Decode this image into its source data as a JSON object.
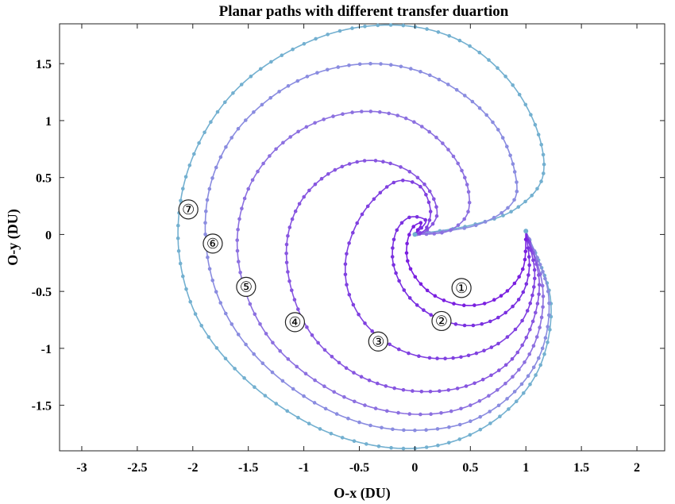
{
  "chart_data": {
    "type": "line",
    "title": "Planar paths with different transfer duartion",
    "xlabel": "O-x (DU)",
    "ylabel": "O-y (DU)",
    "xlim": [
      -3.2,
      2.25
    ],
    "ylim": [
      -1.9,
      1.85
    ],
    "xticks": [
      -3,
      -2.5,
      -2,
      -1.5,
      -1,
      -0.5,
      0,
      0.5,
      1,
      1.5,
      2
    ],
    "yticks": [
      -1.5,
      -1,
      -0.5,
      0,
      0.5,
      1,
      1.5
    ],
    "xtick_labels": [
      "-3",
      "-2.5",
      "-2",
      "-1.5",
      "-1",
      "-0.5",
      "0",
      "0.5",
      "1",
      "1.5",
      "2"
    ],
    "ytick_labels": [
      "-1.5",
      "-1",
      "-0.5",
      "0",
      "0.5",
      "1",
      "1.5"
    ],
    "grid": false,
    "start_point": [
      1.0,
      0.03
    ],
    "end_point": [
      0.0,
      0.0
    ],
    "series": [
      {
        "label": "①",
        "color": "#7a1fe0",
        "label_pos": [
          0.42,
          -0.47
        ],
        "points": [
          [
            1.0,
            0.03
          ],
          [
            0.98,
            -0.28
          ],
          [
            0.85,
            -0.48
          ],
          [
            0.65,
            -0.6
          ],
          [
            0.42,
            -0.62
          ],
          [
            0.2,
            -0.55
          ],
          [
            0.04,
            -0.42
          ],
          [
            -0.06,
            -0.25
          ],
          [
            -0.07,
            -0.08
          ],
          [
            -0.02,
            0.06
          ],
          [
            0.06,
            0.1
          ],
          [
            0.0,
            0.0
          ]
        ]
      },
      {
        "label": "②",
        "color": "#7a30e0",
        "label_pos": [
          0.24,
          -0.76
        ],
        "points": [
          [
            1.0,
            0.03
          ],
          [
            1.03,
            -0.3
          ],
          [
            0.95,
            -0.55
          ],
          [
            0.75,
            -0.73
          ],
          [
            0.5,
            -0.8
          ],
          [
            0.24,
            -0.75
          ],
          [
            0.02,
            -0.62
          ],
          [
            -0.12,
            -0.45
          ],
          [
            -0.2,
            -0.22
          ],
          [
            -0.17,
            0.02
          ],
          [
            -0.05,
            0.15
          ],
          [
            0.1,
            0.12
          ],
          [
            0.0,
            0.0
          ]
        ]
      },
      {
        "label": "③",
        "color": "#8040e0",
        "label_pos": [
          -0.33,
          -0.94
        ],
        "points": [
          [
            1.0,
            0.03
          ],
          [
            1.08,
            -0.35
          ],
          [
            1.0,
            -0.7
          ],
          [
            0.78,
            -0.94
          ],
          [
            0.45,
            -1.07
          ],
          [
            0.1,
            -1.08
          ],
          [
            -0.2,
            -0.98
          ],
          [
            -0.45,
            -0.78
          ],
          [
            -0.6,
            -0.5
          ],
          [
            -0.62,
            -0.2
          ],
          [
            -0.52,
            0.1
          ],
          [
            -0.35,
            0.33
          ],
          [
            -0.15,
            0.47
          ],
          [
            0.05,
            0.42
          ],
          [
            0.14,
            0.22
          ],
          [
            0.1,
            0.05
          ],
          [
            0.0,
            0.0
          ]
        ]
      },
      {
        "label": "④",
        "color": "#8755e0",
        "label_pos": [
          -1.08,
          -0.77
        ],
        "points": [
          [
            1.0,
            0.03
          ],
          [
            1.12,
            -0.4
          ],
          [
            1.05,
            -0.8
          ],
          [
            0.85,
            -1.12
          ],
          [
            0.5,
            -1.32
          ],
          [
            0.1,
            -1.38
          ],
          [
            -0.3,
            -1.32
          ],
          [
            -0.65,
            -1.15
          ],
          [
            -0.95,
            -0.85
          ],
          [
            -1.12,
            -0.45
          ],
          [
            -1.15,
            -0.05
          ],
          [
            -1.02,
            0.3
          ],
          [
            -0.75,
            0.55
          ],
          [
            -0.42,
            0.65
          ],
          [
            -0.1,
            0.58
          ],
          [
            0.12,
            0.4
          ],
          [
            0.2,
            0.18
          ],
          [
            0.1,
            0.03
          ],
          [
            0.0,
            0.0
          ]
        ]
      },
      {
        "label": "⑤",
        "color": "#8c70e0",
        "label_pos": [
          -1.52,
          -0.46
        ],
        "points": [
          [
            1.0,
            0.03
          ],
          [
            1.15,
            -0.45
          ],
          [
            1.1,
            -0.9
          ],
          [
            0.88,
            -1.25
          ],
          [
            0.5,
            -1.5
          ],
          [
            0.05,
            -1.58
          ],
          [
            -0.45,
            -1.5
          ],
          [
            -0.9,
            -1.28
          ],
          [
            -1.28,
            -0.95
          ],
          [
            -1.52,
            -0.52
          ],
          [
            -1.6,
            -0.05
          ],
          [
            -1.5,
            0.4
          ],
          [
            -1.25,
            0.75
          ],
          [
            -0.9,
            0.98
          ],
          [
            -0.48,
            1.08
          ],
          [
            -0.08,
            1.02
          ],
          [
            0.25,
            0.8
          ],
          [
            0.45,
            0.5
          ],
          [
            0.48,
            0.2
          ],
          [
            0.3,
            0.03
          ],
          [
            0.0,
            0.0
          ]
        ]
      },
      {
        "label": "⑥",
        "color": "#8a8ce0",
        "label_pos": [
          -1.82,
          -0.08
        ],
        "points": [
          [
            1.0,
            0.03
          ],
          [
            1.2,
            -0.5
          ],
          [
            1.15,
            -1.0
          ],
          [
            0.9,
            -1.38
          ],
          [
            0.5,
            -1.64
          ],
          [
            0.0,
            -1.72
          ],
          [
            -0.5,
            -1.65
          ],
          [
            -1.0,
            -1.42
          ],
          [
            -1.45,
            -1.05
          ],
          [
            -1.75,
            -0.6
          ],
          [
            -1.88,
            -0.1
          ],
          [
            -1.85,
            0.4
          ],
          [
            -1.65,
            0.85
          ],
          [
            -1.3,
            1.2
          ],
          [
            -0.88,
            1.42
          ],
          [
            -0.4,
            1.5
          ],
          [
            0.05,
            1.43
          ],
          [
            0.45,
            1.22
          ],
          [
            0.75,
            0.92
          ],
          [
            0.9,
            0.55
          ],
          [
            0.88,
            0.28
          ],
          [
            0.55,
            0.08
          ],
          [
            0.0,
            0.0
          ]
        ]
      },
      {
        "label": "⑦",
        "color": "#73b0d0",
        "label_pos": [
          -2.04,
          0.22
        ],
        "points": [
          [
            1.0,
            0.03
          ],
          [
            1.22,
            -0.55
          ],
          [
            1.15,
            -1.1
          ],
          [
            0.88,
            -1.5
          ],
          [
            0.45,
            -1.78
          ],
          [
            -0.05,
            -1.88
          ],
          [
            -0.6,
            -1.8
          ],
          [
            -1.1,
            -1.58
          ],
          [
            -1.58,
            -1.22
          ],
          [
            -1.95,
            -0.75
          ],
          [
            -2.12,
            -0.2
          ],
          [
            -2.1,
            0.35
          ],
          [
            -1.92,
            0.85
          ],
          [
            -1.6,
            1.28
          ],
          [
            -1.15,
            1.6
          ],
          [
            -0.62,
            1.8
          ],
          [
            -0.05,
            1.83
          ],
          [
            0.45,
            1.68
          ],
          [
            0.85,
            1.35
          ],
          [
            1.1,
            0.92
          ],
          [
            1.15,
            0.5
          ],
          [
            0.9,
            0.22
          ],
          [
            0.5,
            0.08
          ],
          [
            0.0,
            0.0
          ]
        ]
      }
    ]
  }
}
